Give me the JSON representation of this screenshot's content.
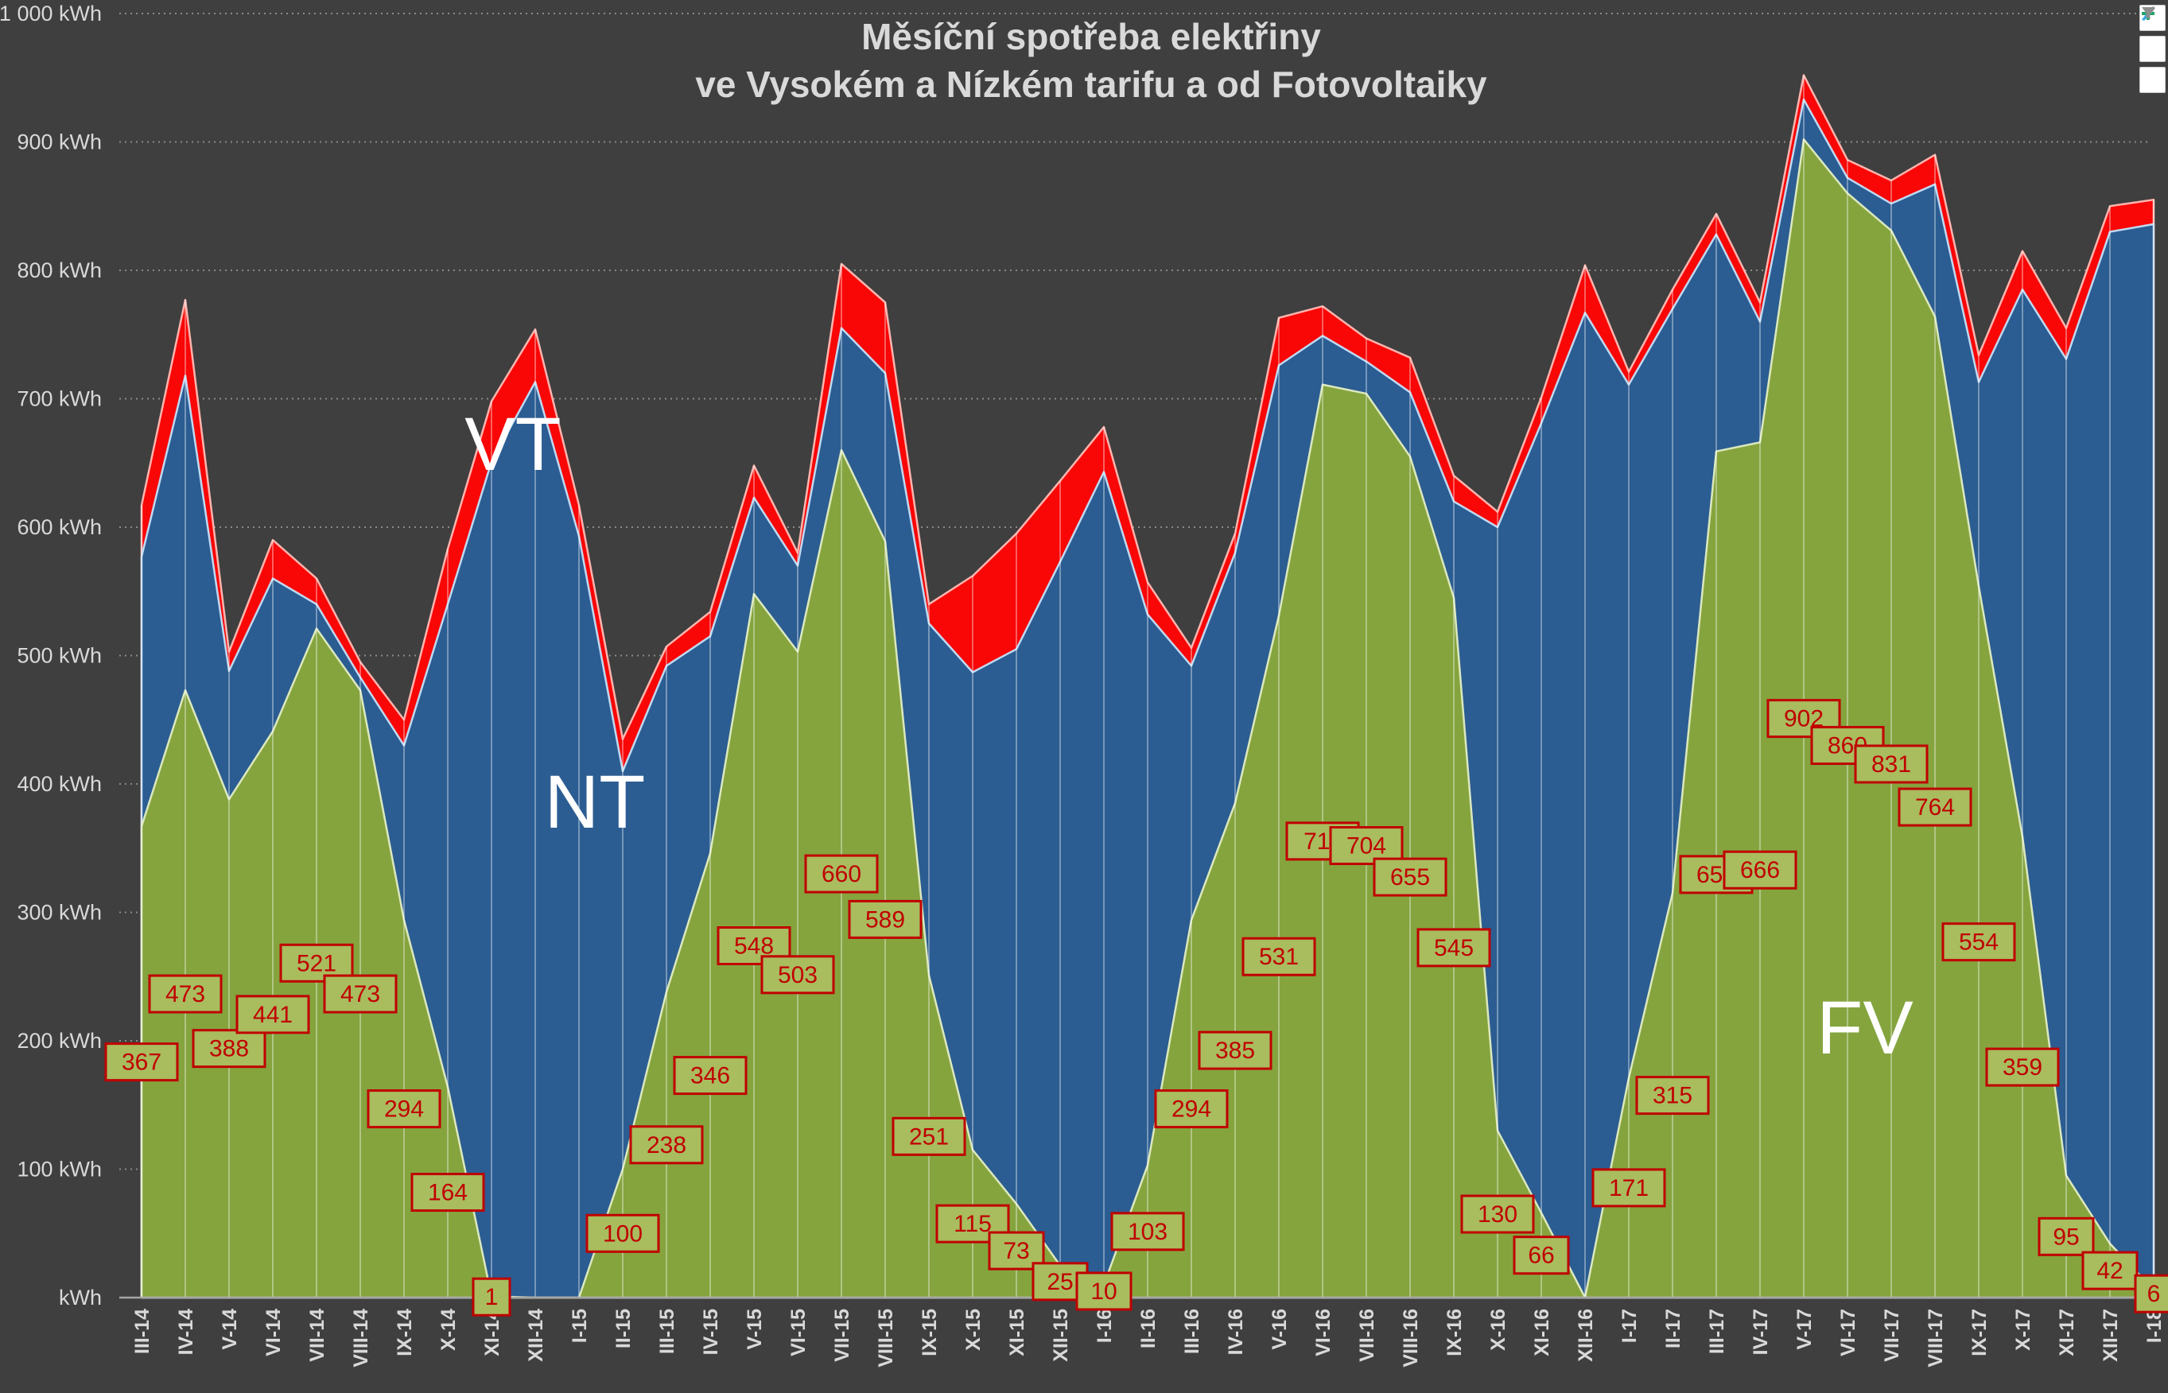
{
  "title": {
    "line1": "Měsíční spotřeba elektřiny",
    "line2": "ve Vysokém a Nízkém tarifu a od Fotovoltaiky"
  },
  "toolbar": {
    "buttons": [
      {
        "name": "chart-elements-button",
        "icon": "plus-icon",
        "color": "#21A366"
      },
      {
        "name": "chart-styles-button",
        "icon": "paintbrush-icon",
        "color": "#2F9BD8"
      },
      {
        "name": "chart-filters-button",
        "icon": "funnel-icon",
        "color": "#808080"
      }
    ]
  },
  "chart_data": {
    "type": "area",
    "stacked": true,
    "grid": "horizontal-dotted",
    "background": "#3F3F3F",
    "ylim": [
      0,
      1000
    ],
    "y_tick_labels": [
      "1 000 kWh",
      "900 kWh",
      "800 kWh",
      "700 kWh",
      "600 kWh",
      "500 kWh",
      "400 kWh",
      "300 kWh",
      "200 kWh",
      "100 kWh",
      "kWh"
    ],
    "categories": [
      "III-14",
      "IV-14",
      "V-14",
      "VI-14",
      "VII-14",
      "VIII-14",
      "IX-14",
      "X-14",
      "XI-14",
      "XII-14",
      "I-15",
      "II-15",
      "III-15",
      "IV-15",
      "V-15",
      "VI-15",
      "VII-15",
      "VIII-15",
      "IX-15",
      "X-15",
      "XI-15",
      "XII-15",
      "I-16",
      "II-16",
      "III-16",
      "IV-16",
      "V-16",
      "VI-16",
      "VII-16",
      "VIII-16",
      "IX-16",
      "X-16",
      "XI-16",
      "XII-16",
      "I-17",
      "II-17",
      "III-17",
      "IV-17",
      "V-17",
      "VI-17",
      "VII-17",
      "VIII-17",
      "IX-17",
      "X-17",
      "XI-17",
      "XII-17",
      "I-18"
    ],
    "series": [
      {
        "name": "FV",
        "color": "#85A43E",
        "edge": "#DCE8BE",
        "values": [
          367,
          473,
          388,
          441,
          521,
          473,
          294,
          164,
          1,
          0,
          0,
          100,
          238,
          346,
          548,
          503,
          660,
          589,
          251,
          115,
          73,
          25,
          10,
          103,
          294,
          385,
          531,
          711,
          704,
          655,
          545,
          130,
          66,
          0,
          171,
          315,
          659,
          666,
          902,
          860,
          831,
          764,
          554,
          359,
          95,
          42,
          6
        ]
      },
      {
        "name": "NT",
        "color": "#2B5D92",
        "edge": "#BFD9F2",
        "values": [
          210,
          245,
          100,
          119,
          19,
          10,
          136,
          376,
          650,
          713,
          593,
          310,
          254,
          169,
          75,
          67,
          95,
          131,
          274,
          372,
          432,
          548,
          633,
          429,
          198,
          195,
          195,
          38,
          25,
          50,
          75,
          470,
          615,
          767,
          540,
          455,
          169,
          94,
          31,
          12,
          21,
          103,
          159,
          426,
          636,
          788,
          830
        ]
      },
      {
        "name": "VT",
        "color": "#F90606",
        "edge": "#FFB4AE",
        "values": [
          40,
          59,
          15,
          30,
          20,
          12,
          20,
          43,
          47,
          41,
          24,
          25,
          15,
          19,
          25,
          10,
          50,
          55,
          15,
          75,
          90,
          63,
          35,
          25,
          14,
          15,
          37,
          23,
          18,
          27,
          20,
          12,
          20,
          37,
          10,
          15,
          16,
          15,
          19,
          14,
          18,
          23,
          21,
          30,
          24,
          20,
          19
        ]
      }
    ],
    "data_labels": {
      "series": "FV",
      "box_fill": "#A9BC5E",
      "box_border": "#C00000",
      "text_color": "#C00000",
      "values": [
        367,
        473,
        388,
        441,
        521,
        473,
        294,
        164,
        1,
        null,
        null,
        100,
        238,
        346,
        548,
        503,
        660,
        589,
        251,
        115,
        73,
        25,
        10,
        103,
        294,
        385,
        531,
        711,
        704,
        655,
        545,
        130,
        66,
        null,
        171,
        315,
        659,
        666,
        902,
        860,
        831,
        764,
        554,
        359,
        95,
        42,
        6
      ]
    },
    "annotations": [
      {
        "text": "VT",
        "x": 645,
        "y": 558
      },
      {
        "text": "NT",
        "x": 748,
        "y": 1008
      },
      {
        "text": "FV",
        "x": 2345,
        "y": 1292
      }
    ],
    "legend": "none",
    "axis_text_color": "#D9D9D9",
    "gridline_color": "#ABABAB",
    "drop_lines": true
  }
}
